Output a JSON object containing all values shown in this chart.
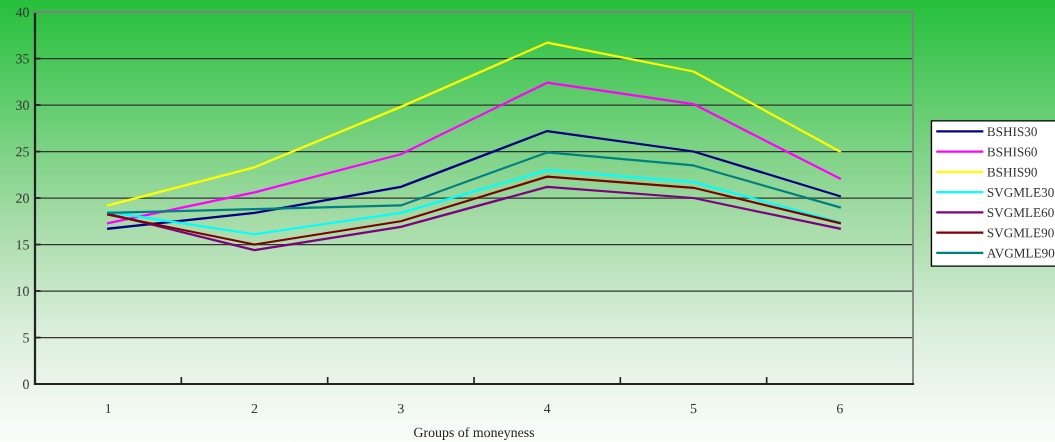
{
  "chart_data": {
    "type": "line",
    "xlabel": "Groups of moneyness",
    "categories": [
      "1",
      "2",
      "3",
      "4",
      "5",
      "6"
    ],
    "series": [
      {
        "name": "BSHIS30",
        "color": "#000080",
        "values": [
          16.7,
          18.4,
          21.2,
          27.2,
          25.0,
          20.2
        ]
      },
      {
        "name": "BSHIS60",
        "color": "#ff00ff",
        "values": [
          17.3,
          20.6,
          24.7,
          32.4,
          30.1,
          22.1
        ]
      },
      {
        "name": "BSHIS90",
        "color": "#ffff00",
        "values": [
          19.2,
          23.3,
          29.8,
          36.7,
          33.6,
          25.0
        ]
      },
      {
        "name": "SVGMLE30",
        "color": "#00ffff",
        "values": [
          18.5,
          16.1,
          18.4,
          23.0,
          21.7,
          17.4
        ]
      },
      {
        "name": "SVGMLE60",
        "color": "#800080",
        "values": [
          18.3,
          14.4,
          16.9,
          21.2,
          20.0,
          16.7
        ]
      },
      {
        "name": "SVGMLE90",
        "color": "#800000",
        "values": [
          18.2,
          15.0,
          17.5,
          22.3,
          21.1,
          17.3
        ]
      },
      {
        "name": "AVGMLE90",
        "color": "#008080",
        "values": [
          18.4,
          18.8,
          19.2,
          24.9,
          23.5,
          19.0
        ]
      }
    ],
    "ylim": [
      0,
      40
    ],
    "yticks": [
      0,
      5,
      10,
      15,
      20,
      25,
      30,
      35,
      40
    ],
    "grid": "y",
    "legend": "right",
    "line_style": "solid"
  }
}
